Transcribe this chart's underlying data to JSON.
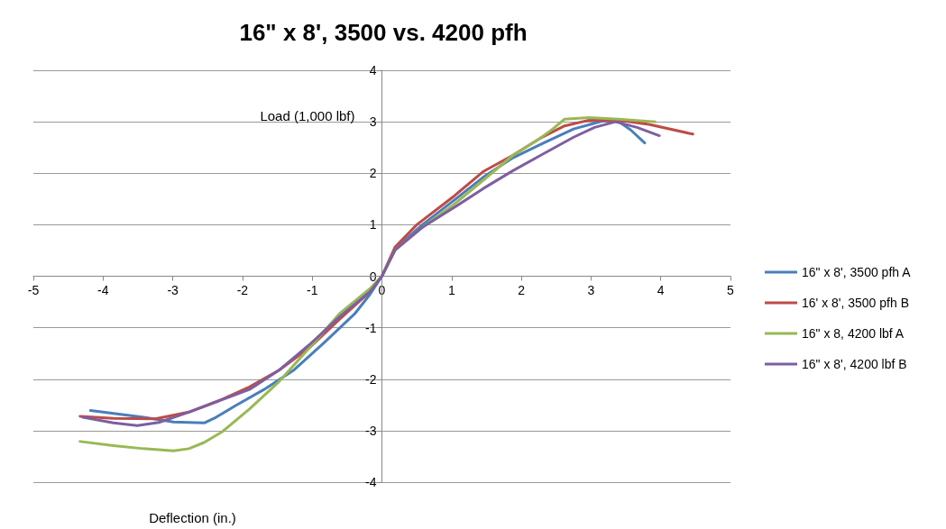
{
  "chart_data": {
    "type": "line",
    "title": "16\" x 8', 3500 vs. 4200 pfh",
    "xlabel": "Deflection (in.)",
    "ylabel": "Load (1,000 lbf)",
    "xlim": [
      -5,
      5
    ],
    "xticks": [
      -5,
      -4,
      -3,
      -2,
      -1,
      0,
      1,
      2,
      3,
      4,
      5
    ],
    "ylim": [
      -4,
      4
    ],
    "yticks": [
      -4,
      -3,
      -2,
      -1,
      0,
      1,
      2,
      3,
      4
    ],
    "grid": "y",
    "legend": "right",
    "marker": "none",
    "line_style": "solid",
    "series": [
      {
        "name": "16\" x 8', 3500 pfh A",
        "color": "#4a7ebb",
        "x": [
          -4.18,
          -3.42,
          -2.99,
          -2.55,
          -2.38,
          -2.12,
          -1.69,
          -1.26,
          -0.82,
          -0.39,
          -0.17,
          0,
          0.19,
          0.58,
          1.02,
          1.45,
          1.88,
          2.32,
          2.75,
          3.18,
          3.4,
          3.57,
          3.77
        ],
        "values": [
          -2.61,
          -2.74,
          -2.83,
          -2.85,
          -2.74,
          -2.53,
          -2.2,
          -1.82,
          -1.28,
          -0.73,
          -0.35,
          0,
          0.54,
          1.0,
          1.46,
          1.92,
          2.3,
          2.59,
          2.86,
          3.02,
          3.0,
          2.84,
          2.59
        ]
      },
      {
        "name": "16' x 8', 3500 pfh B",
        "color": "#be4b48",
        "x": [
          -4.33,
          -3.85,
          -3.25,
          -2.77,
          -2.34,
          -1.9,
          -1.47,
          -1.04,
          -0.61,
          -0.26,
          0,
          0.19,
          0.5,
          1.02,
          1.45,
          1.88,
          2.27,
          2.62,
          2.97,
          3.4,
          3.83,
          4.46
        ],
        "values": [
          -2.72,
          -2.76,
          -2.77,
          -2.64,
          -2.42,
          -2.15,
          -1.82,
          -1.39,
          -0.84,
          -0.41,
          0,
          0.57,
          1.0,
          1.54,
          2.03,
          2.35,
          2.68,
          2.92,
          3.03,
          3.03,
          2.95,
          2.76
        ]
      },
      {
        "name": "16\" x 8, 4200 lbf A",
        "color": "#98b954",
        "x": [
          -4.33,
          -3.85,
          -3.42,
          -2.99,
          -2.77,
          -2.55,
          -2.29,
          -1.9,
          -1.47,
          -1.04,
          -0.61,
          -0.17,
          0,
          0.19,
          0.58,
          1.02,
          1.45,
          1.88,
          2.27,
          2.45,
          2.62,
          2.97,
          3.4,
          3.92
        ],
        "values": [
          -3.21,
          -3.29,
          -3.35,
          -3.39,
          -3.35,
          -3.23,
          -3.02,
          -2.58,
          -2.04,
          -1.39,
          -0.73,
          -0.24,
          0,
          0.51,
          0.95,
          1.38,
          1.86,
          2.35,
          2.68,
          2.86,
          3.05,
          3.08,
          3.05,
          3.0
        ]
      },
      {
        "name": "16\" x 8', 4200 lbf B",
        "color": "#7d5fa0",
        "x": [
          -4.29,
          -3.85,
          -3.51,
          -3.2,
          -2.77,
          -2.34,
          -1.9,
          -1.47,
          -1.04,
          -0.61,
          -0.17,
          0,
          0.19,
          0.58,
          1.02,
          1.45,
          1.88,
          2.32,
          2.75,
          3.05,
          3.35,
          3.66,
          3.98
        ],
        "values": [
          -2.74,
          -2.85,
          -2.9,
          -2.84,
          -2.64,
          -2.42,
          -2.2,
          -1.82,
          -1.33,
          -0.79,
          -0.3,
          0,
          0.51,
          0.95,
          1.32,
          1.7,
          2.05,
          2.38,
          2.7,
          2.89,
          3.0,
          2.89,
          2.73
        ]
      }
    ]
  }
}
